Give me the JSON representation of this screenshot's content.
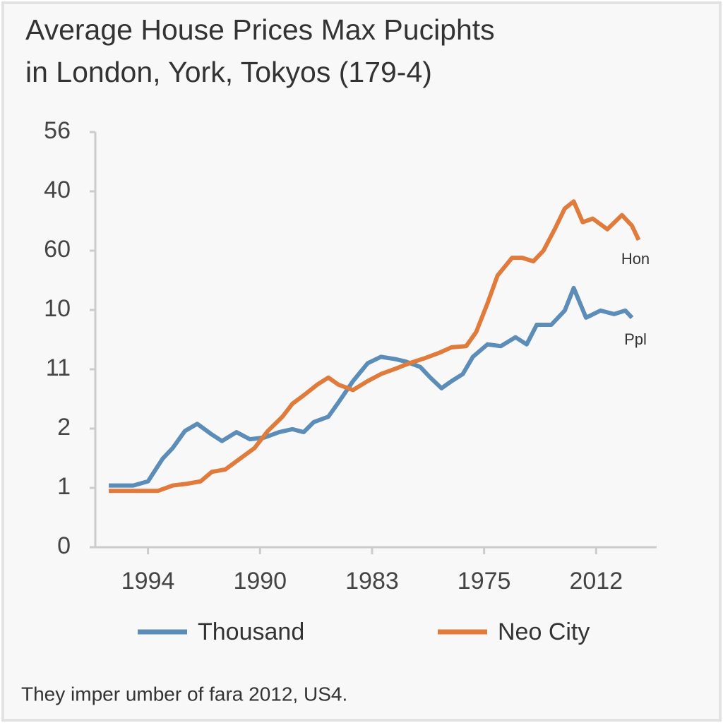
{
  "chart_data": {
    "type": "line",
    "title": [
      "Average House Prices Max Puciphts",
      "in London, York, Tokyos (179-4)"
    ],
    "xlim": [
      -0.47,
      4.54
    ],
    "xticks": [
      {
        "value": 0,
        "label": "1994"
      },
      {
        "value": 1,
        "label": "1990"
      },
      {
        "value": 2,
        "label": "1983"
      },
      {
        "value": 3,
        "label": "1975"
      },
      {
        "value": 4,
        "label": "2012"
      }
    ],
    "ylim": [
      0,
      7
    ],
    "yticks": [
      0,
      1,
      2,
      {
        "value": 3,
        "label": "11"
      },
      {
        "value": 4,
        "label": "10"
      },
      {
        "value": 5,
        "label": "60"
      },
      {
        "value": 6,
        "label": "40"
      },
      {
        "value": 7,
        "label": "56"
      }
    ],
    "series": [
      {
        "name": "Thousand",
        "color": "#5b8db8",
        "x": [
          -0.35,
          -0.13,
          0,
          0.13,
          0.22,
          0.33,
          0.44,
          0.57,
          0.66,
          0.79,
          0.91,
          1.04,
          1.17,
          1.29,
          1.39,
          1.48,
          1.61,
          1.7,
          1.83,
          1.96,
          2.08,
          2.21,
          2.3,
          2.43,
          2.52,
          2.62,
          2.71,
          2.81,
          2.9,
          3.03,
          3.15,
          3.28,
          3.38,
          3.47,
          3.6,
          3.72,
          3.8,
          3.91,
          4.04,
          4.16,
          4.26,
          4.32
        ],
        "values": [
          1.04,
          1.04,
          1.11,
          1.49,
          1.67,
          1.96,
          2.08,
          1.9,
          1.79,
          1.94,
          1.82,
          1.85,
          1.94,
          1.99,
          1.94,
          2.11,
          2.2,
          2.44,
          2.8,
          3.1,
          3.21,
          3.17,
          3.13,
          3.04,
          2.86,
          2.68,
          2.8,
          2.92,
          3.21,
          3.42,
          3.39,
          3.54,
          3.42,
          3.75,
          3.75,
          3.99,
          4.37,
          3.87,
          3.99,
          3.93,
          3.99,
          3.87
        ]
      },
      {
        "name": "Neo City",
        "color": "#e07b3c",
        "x": [
          -0.35,
          -0.13,
          0.09,
          0.22,
          0.35,
          0.47,
          0.57,
          0.69,
          0.82,
          0.95,
          1.07,
          1.2,
          1.29,
          1.39,
          1.51,
          1.61,
          1.7,
          1.83,
          1.96,
          2.08,
          2.21,
          2.33,
          2.46,
          2.59,
          2.71,
          2.84,
          2.93,
          3.03,
          3.12,
          3.25,
          3.34,
          3.44,
          3.53,
          3.63,
          3.72,
          3.8,
          3.88,
          3.97,
          4.1,
          4.23,
          4.32,
          4.38
        ],
        "values": [
          0.95,
          0.95,
          0.95,
          1.04,
          1.07,
          1.11,
          1.27,
          1.31,
          1.49,
          1.67,
          1.96,
          2.2,
          2.42,
          2.56,
          2.74,
          2.86,
          2.74,
          2.65,
          2.8,
          2.92,
          3.01,
          3.1,
          3.18,
          3.27,
          3.37,
          3.39,
          3.63,
          4.11,
          4.58,
          4.88,
          4.88,
          4.82,
          5.0,
          5.36,
          5.71,
          5.83,
          5.48,
          5.54,
          5.36,
          5.6,
          5.42,
          5.18
        ]
      }
    ],
    "annotations": [
      "Hon",
      "Ppl"
    ],
    "legend": "bottom",
    "note": "They imper umber of fara 2012, US4."
  }
}
